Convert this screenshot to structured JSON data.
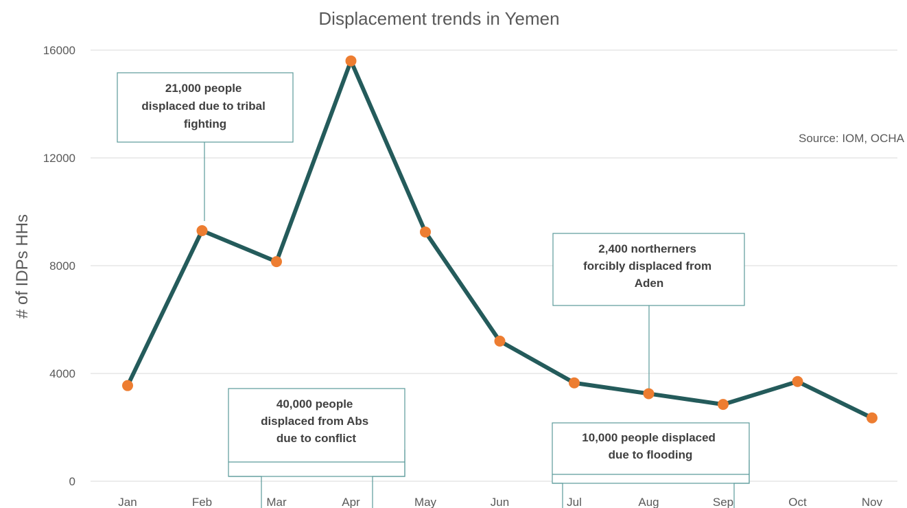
{
  "chart_data": {
    "type": "line",
    "title": "Displacement trends in Yemen",
    "ylabel": "# of IDPs HHs",
    "xlabel": "",
    "categories": [
      "Jan",
      "Feb",
      "Mar",
      "Apr",
      "May",
      "Jun",
      "Jul",
      "Aug",
      "Sep",
      "Oct",
      "Nov"
    ],
    "series": [
      {
        "values": [
          3550,
          9300,
          8150,
          15600,
          9250,
          5200,
          3650,
          3250,
          2850,
          3700,
          2350
        ]
      }
    ],
    "ylim": [
      0,
      16000
    ],
    "yticks": [
      "0",
      "4000",
      "8000",
      "12000",
      "16000"
    ],
    "grid": true,
    "source": "Source: IOM, OCHA",
    "annotations": [
      {
        "lines": [
          "21,000 people",
          "displaced due to tribal",
          "fighting"
        ],
        "category": "Feb"
      },
      {
        "lines": [
          "40,000 people",
          "displaced from Abs",
          "due to conflict"
        ],
        "category": "Apr"
      },
      {
        "lines": [
          "2,400 northerners",
          "forcibly displaced from",
          "Aden"
        ],
        "category": "Aug"
      },
      {
        "lines": [
          "10,000 people displaced",
          "due to flooding"
        ],
        "category": "Aug"
      }
    ],
    "colors": {
      "line": "#245b5b",
      "marker": "#ed7d31",
      "callout": "#5a9a9a"
    }
  }
}
